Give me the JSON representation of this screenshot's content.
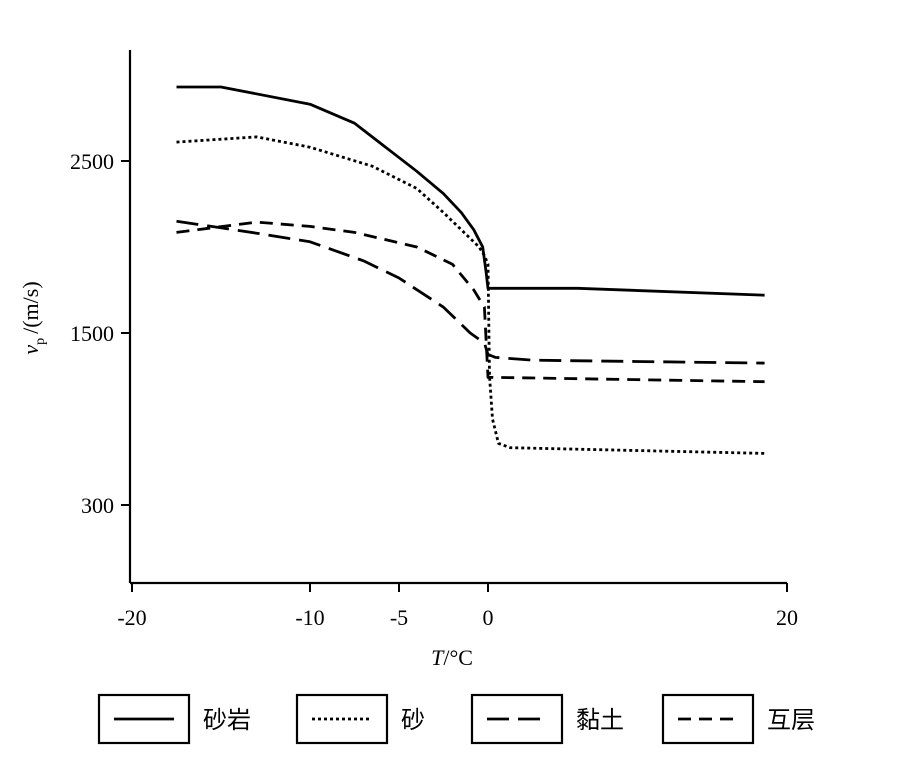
{
  "chart_data": {
    "type": "line",
    "xlabel": {
      "var": "T",
      "unit": "/°C"
    },
    "ylabel": {
      "var": "v",
      "sub": "p",
      "unit": "/(m/s)"
    },
    "x_ticks": [
      "-20",
      "-10",
      "-5",
      "0",
      "20"
    ],
    "y_ticks": [
      "2500",
      "1500",
      "300"
    ],
    "xlim": [
      -20,
      20
    ],
    "grid": false,
    "legend_position": "bottom",
    "series": [
      {
        "name": "砂岩",
        "style": "solid",
        "points": [
          [
            -17.5,
            2930
          ],
          [
            -15,
            2930
          ],
          [
            -10,
            2830
          ],
          [
            -7.5,
            2720
          ],
          [
            -5.5,
            2560
          ],
          [
            -4,
            2440
          ],
          [
            -2.5,
            2310
          ],
          [
            -1.5,
            2200
          ],
          [
            -0.8,
            2100
          ],
          [
            -0.3,
            2000
          ],
          [
            -0.1,
            1850
          ],
          [
            0,
            1760
          ],
          [
            0.5,
            1760
          ],
          [
            6,
            1760
          ],
          [
            18.5,
            1720
          ]
        ]
      },
      {
        "name": "砂",
        "style": "dotted",
        "points": [
          [
            -17.5,
            2610
          ],
          [
            -13,
            2640
          ],
          [
            -10,
            2580
          ],
          [
            -6.5,
            2470
          ],
          [
            -4,
            2340
          ],
          [
            -2.5,
            2200
          ],
          [
            -1.5,
            2100
          ],
          [
            -0.5,
            2000
          ],
          [
            -0.2,
            1950
          ],
          [
            0,
            1900
          ],
          [
            0.1,
            1200
          ],
          [
            0.3,
            900
          ],
          [
            0.7,
            730
          ],
          [
            1.5,
            700
          ],
          [
            18.5,
            660
          ]
        ]
      },
      {
        "name": "黏土",
        "style": "long-dash",
        "points": [
          [
            -17.5,
            2150
          ],
          [
            -13,
            2080
          ],
          [
            -10,
            2030
          ],
          [
            -7,
            1920
          ],
          [
            -5,
            1820
          ],
          [
            -2.5,
            1650
          ],
          [
            -1,
            1500
          ],
          [
            -0.2,
            1430
          ],
          [
            0,
            1350
          ],
          [
            0.5,
            1330
          ],
          [
            3,
            1310
          ],
          [
            18.5,
            1290
          ]
        ]
      },
      {
        "name": "互层",
        "style": "short-dash",
        "points": [
          [
            -17.5,
            2085
          ],
          [
            -13,
            2145
          ],
          [
            -10,
            2120
          ],
          [
            -7.5,
            2085
          ],
          [
            -4,
            2000
          ],
          [
            -2,
            1900
          ],
          [
            -0.8,
            1750
          ],
          [
            -0.2,
            1650
          ],
          [
            0,
            1190
          ],
          [
            0.5,
            1190
          ],
          [
            18.5,
            1160
          ]
        ]
      }
    ]
  }
}
